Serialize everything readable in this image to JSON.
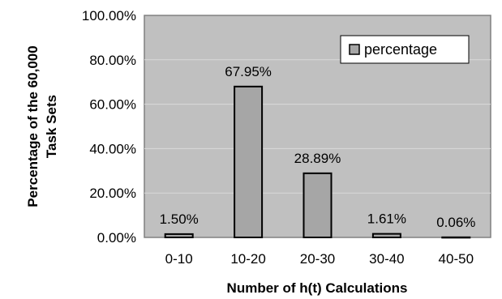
{
  "chart_data": {
    "type": "bar",
    "categories": [
      "0-10",
      "10-20",
      "20-30",
      "30-40",
      "40-50"
    ],
    "series": [
      {
        "name": "percentage",
        "values": [
          1.5,
          67.95,
          28.89,
          1.61,
          0.06
        ],
        "color": "#a6a6a6"
      }
    ],
    "data_labels": [
      "1.50%",
      "67.95%",
      "28.89%",
      "1.61%",
      "0.06%"
    ],
    "y_ticks": [
      "0.00%",
      "20.00%",
      "40.00%",
      "60.00%",
      "80.00%",
      "100.00%"
    ],
    "ylim": [
      0,
      100
    ],
    "xlabel": "Number of h(t) Calculations",
    "ylabel_lines": [
      "Percentage of the 60,000",
      "Task Sets"
    ],
    "grid": true,
    "legend_position": "top-right",
    "plot_background": "#c0c0c0",
    "grid_color": "#d9d9d9"
  }
}
